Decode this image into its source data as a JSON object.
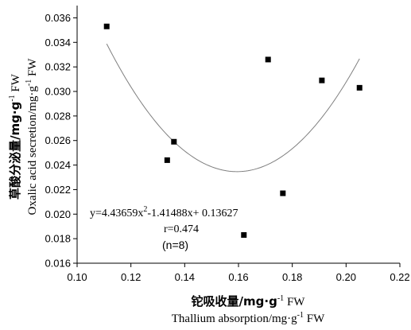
{
  "chart_data": {
    "type": "scatter",
    "title": "",
    "xlabel_cn": "铊吸收量/mg·g",
    "xlabel_en": "Thallium absorption/mg·g",
    "ylabel_cn": "草酸分泌量/mg·g",
    "ylabel_en": "Oxalic acid secretion/mg·g",
    "label_sup": "-1",
    "label_unit": " FW",
    "xlim": [
      0.1,
      0.22
    ],
    "ylim": [
      0.016,
      0.037
    ],
    "xticks": [
      "0.10",
      "0.12",
      "0.14",
      "0.16",
      "0.18",
      "0.20",
      "0.22"
    ],
    "yticks": [
      "0.016",
      "0.018",
      "0.020",
      "0.022",
      "0.024",
      "0.026",
      "0.028",
      "0.030",
      "0.032",
      "0.034",
      "0.036"
    ],
    "points": [
      {
        "x": 0.111,
        "y": 0.0353
      },
      {
        "x": 0.1335,
        "y": 0.0244
      },
      {
        "x": 0.136,
        "y": 0.0259
      },
      {
        "x": 0.162,
        "y": 0.0183
      },
      {
        "x": 0.171,
        "y": 0.0326
      },
      {
        "x": 0.1765,
        "y": 0.0217
      },
      {
        "x": 0.191,
        "y": 0.0309
      },
      {
        "x": 0.205,
        "y": 0.0303
      }
    ],
    "fit": {
      "type": "quadratic",
      "coefficients": [
        4.43659,
        -1.41488,
        0.13627
      ],
      "x_range": [
        0.111,
        0.205
      ],
      "color": "#7f7f7f"
    },
    "grid": false,
    "annotations": {
      "equation": {
        "pre": "y=4.43659x",
        "sup": "2",
        "post": "-1.41488x+ 0.13627"
      },
      "r": "r=0.474",
      "n": "(n=8)"
    }
  }
}
